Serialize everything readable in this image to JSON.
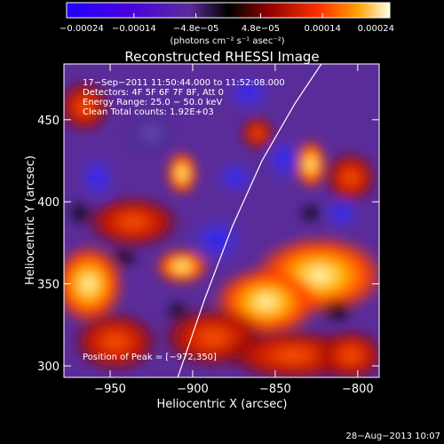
{
  "chart_data": {
    "type": "heatmap",
    "title": "Reconstructed RHESSI Image",
    "xlabel": "Heliocentric X (arcsec)",
    "ylabel": "Heliocentric Y (arcsec)",
    "xlim": [
      -978,
      -787
    ],
    "ylim": [
      293,
      484
    ],
    "x_ticks": [
      -950,
      -900,
      -850,
      -800
    ],
    "x_tick_labels": [
      "−950",
      "−900",
      "−850",
      "−800"
    ],
    "y_ticks": [
      300,
      350,
      400,
      450
    ],
    "y_tick_labels": [
      "300",
      "350",
      "400",
      "450"
    ],
    "colorbar": {
      "range": [
        -0.00024,
        0.00024
      ],
      "ticks": [
        -0.00024,
        -0.00014,
        -4.8e-05,
        4.8e-05,
        0.00014,
        0.00024
      ],
      "tick_labels": [
        "−0.00024",
        "−0.00014",
        "−4.8e−05",
        "4.8e−05",
        "0.00014",
        "0.00024"
      ],
      "unit_label": "(photons cm⁻² s⁻¹ asec⁻²)"
    },
    "annotations": [
      "17−Sep−2011 11:50:44.000 to 11:52:08.000",
      "Detectors: 4F 5F 6F 7F 8F, Att 0",
      "Energy Range: 25.0 − 50.0 keV",
      "Clean     Total counts: 1.92E+03"
    ],
    "peak": {
      "label": "Position of Peak = [−972,350]",
      "x": -972,
      "y": 350
    },
    "limb_curve": [
      [
        -909,
        293
      ],
      [
        -893,
        340
      ],
      [
        -876,
        385
      ],
      [
        -858,
        425
      ],
      [
        -838,
        460
      ],
      [
        -822,
        484
      ]
    ],
    "grid": false,
    "legend": "colorbar-top"
  },
  "footer": {
    "timestamp": "28−Aug−2013 10:07"
  }
}
